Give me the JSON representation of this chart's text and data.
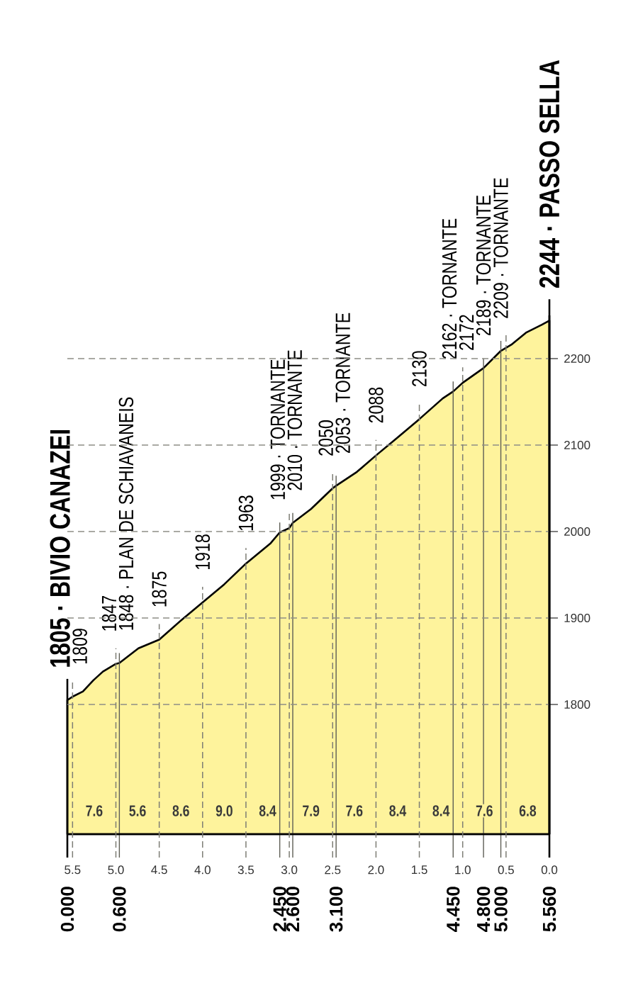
{
  "chart_data": {
    "type": "area",
    "x": [
      0,
      0.06,
      0.18,
      0.3,
      0.41,
      0.56,
      0.6,
      0.82,
      1.06,
      1.32,
      1.56,
      1.81,
      2.06,
      2.34,
      2.45,
      2.56,
      2.6,
      2.81,
      3.06,
      3.1,
      3.34,
      3.56,
      3.8,
      4.06,
      4.33,
      4.45,
      4.56,
      4.8,
      5,
      5.12,
      5.29,
      5.47,
      5.56
    ],
    "series": [
      {
        "color": "#fef39c",
        "values": [
          1805,
          1809,
          1815,
          1828,
          1838,
          1847,
          1848,
          1865,
          1875,
          1898,
          1918,
          1939,
          1963,
          1986,
          1999,
          2004,
          2010,
          2026,
          2050,
          2053,
          2069,
          2088,
          2108,
          2130,
          2154,
          2162,
          2172,
          2189,
          2209,
          2216,
          2230,
          2239,
          2244
        ]
      }
    ],
    "xlim": [
      0,
      5.56
    ],
    "xticks": [
      {
        "value": 0,
        "label": "0.000"
      },
      {
        "value": 0.6,
        "label": "0.600"
      },
      {
        "value": 2.45,
        "label": "2.450"
      },
      {
        "value": 2.6,
        "label": "2.600"
      },
      {
        "value": 3.1,
        "label": "3.100"
      },
      {
        "value": 4.45,
        "label": "4.450"
      },
      {
        "value": 4.8,
        "label": "4.800"
      },
      {
        "value": 5,
        "label": "5.000"
      },
      {
        "value": 5.56,
        "label": "5.560"
      }
    ],
    "x2lim": [
      5.56,
      0
    ],
    "x2ticks": [
      5.5,
      {
        "value": 5,
        "label": "5.0"
      },
      4.5,
      {
        "value": 4,
        "label": "4.0"
      },
      3.5,
      {
        "value": 3,
        "label": "3.0"
      },
      2.5,
      {
        "value": 2,
        "label": "2.0"
      },
      1.5,
      {
        "value": 1,
        "label": "1.0"
      },
      0.5,
      {
        "value": 0,
        "label": "0.0"
      }
    ],
    "ylim": [
      1650,
      2250
    ],
    "yticks": [
      1800,
      1900,
      2000,
      2100,
      2200
    ],
    "grid": true,
    "annotations": [
      {
        "text": "1805 · BIVIO CANAZEI",
        "x": 0,
        "y": 1805
      },
      {
        "text": "1809",
        "x": 0.06,
        "y": 1809
      },
      {
        "text": "1847",
        "x": 0.56,
        "y": 1847
      },
      {
        "text": "1848 · PLAN DE SCHIAVANEIS",
        "x": 0.6,
        "y": 1848
      },
      {
        "text": "1875",
        "x": 1.06,
        "y": 1875
      },
      {
        "text": "1918",
        "x": 1.56,
        "y": 1918
      },
      {
        "text": "1963",
        "x": 2.06,
        "y": 1963
      },
      {
        "text": "1999 · TORNANTE",
        "x": 2.45,
        "y": 1999
      },
      {
        "text": "2010 · TORNANTE",
        "x": 2.6,
        "y": 2010
      },
      {
        "text": "2050",
        "x": 3.06,
        "y": 2050
      },
      {
        "text": "2053 · TORNANTE",
        "x": 3.1,
        "y": 2053
      },
      {
        "text": "2088",
        "x": 3.56,
        "y": 2088
      },
      {
        "text": "2130",
        "x": 4.06,
        "y": 2130
      },
      {
        "text": "2162 · TORNANTE",
        "x": 4.45,
        "y": 2162
      },
      {
        "text": "2172",
        "x": 4.56,
        "y": 2172
      },
      {
        "text": "2189 · TORNANTE",
        "x": 4.8,
        "y": 2189
      },
      {
        "text": "2209 · TORNANTE",
        "x": 5,
        "y": 2209
      },
      {
        "text": "2244 · PASSO SELLA",
        "x": 5.56,
        "y": 2244
      },
      "7.6",
      "5.6",
      "8.6",
      "9.0",
      "8.4",
      "7.9",
      "7.6",
      "8.4",
      "8.4",
      "7.6",
      "6.8"
    ]
  }
}
